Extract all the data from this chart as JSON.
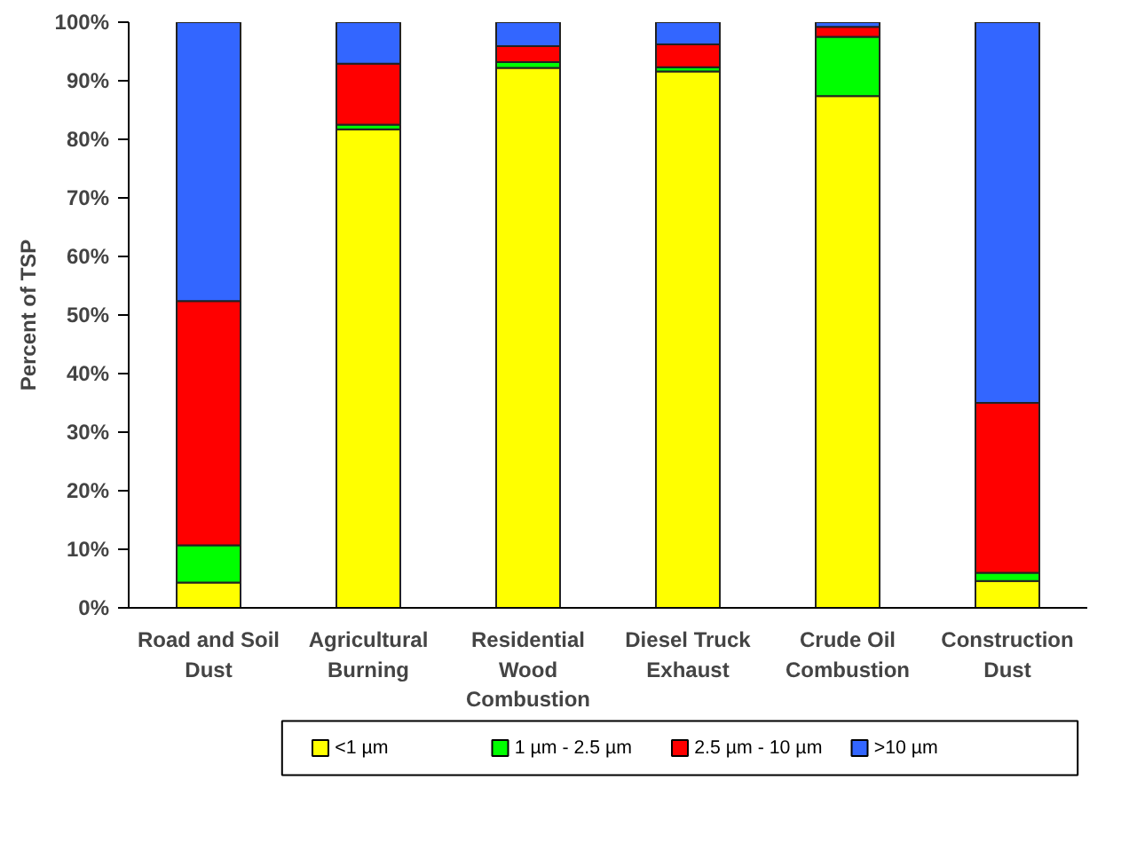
{
  "chart_data": {
    "type": "bar",
    "stacked": true,
    "ylabel": "Percent of TSP",
    "categories": [
      "Road and Soil\nDust",
      "Agricultural\nBurning",
      "Residential\nWood\nCombustion",
      "Diesel Truck\nExhaust",
      "Crude Oil\nCombustion",
      "Construction\nDust"
    ],
    "series": [
      {
        "name": "<1 µm",
        "color": "#ffff00",
        "values": [
          4.3,
          81.7,
          92.2,
          91.6,
          87.4,
          4.6
        ]
      },
      {
        "name": "1 µm - 2.5 µm",
        "color": "#00ff00",
        "values": [
          6.4,
          0.8,
          1.0,
          0.7,
          10.1,
          1.4
        ]
      },
      {
        "name": "2.5 µm - 10 µm",
        "color": "#ff0000",
        "values": [
          41.7,
          10.4,
          2.7,
          3.9,
          1.7,
          29.0
        ]
      },
      {
        "name": ">10 µm",
        "color": "#3366ff",
        "values": [
          47.6,
          7.1,
          4.1,
          3.8,
          0.8,
          65.0
        ]
      }
    ],
    "ylim": [
      0,
      100
    ],
    "yticks": [
      {
        "value": 0,
        "label": "0%"
      },
      {
        "value": 10,
        "label": "10%"
      },
      {
        "value": 20,
        "label": "20%"
      },
      {
        "value": 30,
        "label": "30%"
      },
      {
        "value": 40,
        "label": "40%"
      },
      {
        "value": 50,
        "label": "50%"
      },
      {
        "value": 60,
        "label": "60%"
      },
      {
        "value": 70,
        "label": "70%"
      },
      {
        "value": 80,
        "label": "80%"
      },
      {
        "value": 90,
        "label": "90%"
      },
      {
        "value": 100,
        "label": "100%"
      }
    ],
    "grid": false,
    "legend": "bottom"
  }
}
